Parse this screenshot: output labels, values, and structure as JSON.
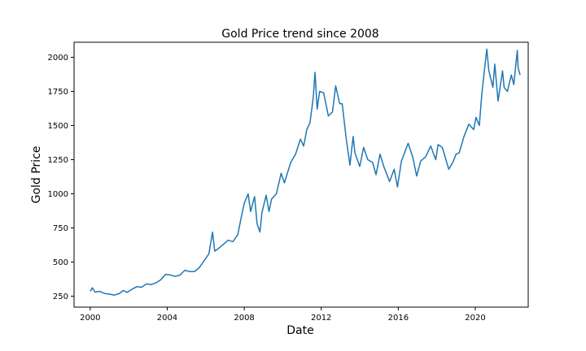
{
  "chart_data": {
    "type": "line",
    "title": "Gold Price trend since 2008",
    "xlabel": "Date",
    "ylabel": "Gold Price",
    "x_ticks": [
      "2000",
      "2004",
      "2008",
      "2012",
      "2016",
      "2020"
    ],
    "y_ticks": [
      "250",
      "500",
      "750",
      "1000",
      "1250",
      "1500",
      "1750",
      "2000"
    ],
    "xlim": [
      "1999-03-01",
      "2022-10-01"
    ],
    "ylim": [
      170,
      2110
    ],
    "grid": false,
    "line_color": "#1f77b4",
    "series": [
      {
        "x": [
          "2000-01-01",
          "2000-02-10",
          "2000-04-01",
          "2000-07-01",
          "2000-10-01",
          "2001-01-01",
          "2001-04-01",
          "2001-07-01",
          "2001-09-20",
          "2001-12-01",
          "2002-03-01",
          "2002-06-01",
          "2002-09-01",
          "2002-12-01",
          "2003-03-01",
          "2003-06-01",
          "2003-09-01",
          "2003-12-01",
          "2004-03-01",
          "2004-06-01",
          "2004-09-01",
          "2004-12-01",
          "2005-03-01",
          "2005-06-01",
          "2005-09-01",
          "2005-12-01",
          "2006-03-01",
          "2006-05-10",
          "2006-06-20",
          "2006-09-01",
          "2006-12-01",
          "2007-03-01",
          "2007-06-01",
          "2007-09-01",
          "2007-11-01",
          "2008-01-01",
          "2008-03-15",
          "2008-05-01",
          "2008-07-15",
          "2008-09-01",
          "2008-10-25",
          "2008-12-01",
          "2009-02-20",
          "2009-04-15",
          "2009-06-01",
          "2009-09-01",
          "2009-12-01",
          "2010-02-01",
          "2010-06-01",
          "2010-09-01",
          "2010-12-01",
          "2011-02-01",
          "2011-04-01",
          "2011-06-01",
          "2011-08-01",
          "2011-09-05",
          "2011-10-15",
          "2011-12-01",
          "2012-02-15",
          "2012-05-15",
          "2012-08-01",
          "2012-10-01",
          "2012-12-15",
          "2013-02-01",
          "2013-04-20",
          "2013-06-28",
          "2013-08-28",
          "2013-10-01",
          "2013-12-31",
          "2014-03-15",
          "2014-06-01",
          "2014-09-01",
          "2014-11-05",
          "2015-01-20",
          "2015-04-01",
          "2015-07-20",
          "2015-10-15",
          "2015-12-17",
          "2016-03-01",
          "2016-07-06",
          "2016-10-01",
          "2016-12-15",
          "2017-03-01",
          "2017-06-01",
          "2017-09-08",
          "2017-12-12",
          "2018-01-25",
          "2018-04-15",
          "2018-08-16",
          "2018-11-01",
          "2019-01-01",
          "2019-03-01",
          "2019-06-01",
          "2019-09-01",
          "2019-12-01",
          "2020-01-15",
          "2020-03-18",
          "2020-05-01",
          "2020-08-06",
          "2020-09-15",
          "2020-11-30",
          "2021-01-05",
          "2021-03-08",
          "2021-06-01",
          "2021-07-01",
          "2021-09-01",
          "2021-11-15",
          "2022-01-01",
          "2022-03-08",
          "2022-03-25",
          "2022-05-01"
        ],
        "y": [
          285,
          312,
          280,
          285,
          270,
          265,
          258,
          268,
          292,
          278,
          300,
          320,
          315,
          340,
          335,
          348,
          370,
          410,
          405,
          395,
          405,
          440,
          430,
          430,
          460,
          510,
          560,
          720,
          580,
          600,
          630,
          660,
          650,
          700,
          820,
          930,
          1000,
          870,
          980,
          780,
          720,
          860,
          990,
          870,
          960,
          1000,
          1150,
          1080,
          1230,
          1290,
          1400,
          1350,
          1470,
          1520,
          1700,
          1890,
          1620,
          1750,
          1740,
          1570,
          1600,
          1790,
          1660,
          1660,
          1400,
          1210,
          1420,
          1300,
          1200,
          1340,
          1250,
          1230,
          1140,
          1290,
          1200,
          1090,
          1180,
          1050,
          1240,
          1370,
          1270,
          1130,
          1240,
          1270,
          1350,
          1250,
          1360,
          1340,
          1180,
          1230,
          1290,
          1300,
          1420,
          1510,
          1470,
          1560,
          1500,
          1720,
          2060,
          1900,
          1780,
          1950,
          1680,
          1900,
          1780,
          1750,
          1870,
          1800,
          2050,
          1920,
          1870
        ]
      }
    ]
  }
}
